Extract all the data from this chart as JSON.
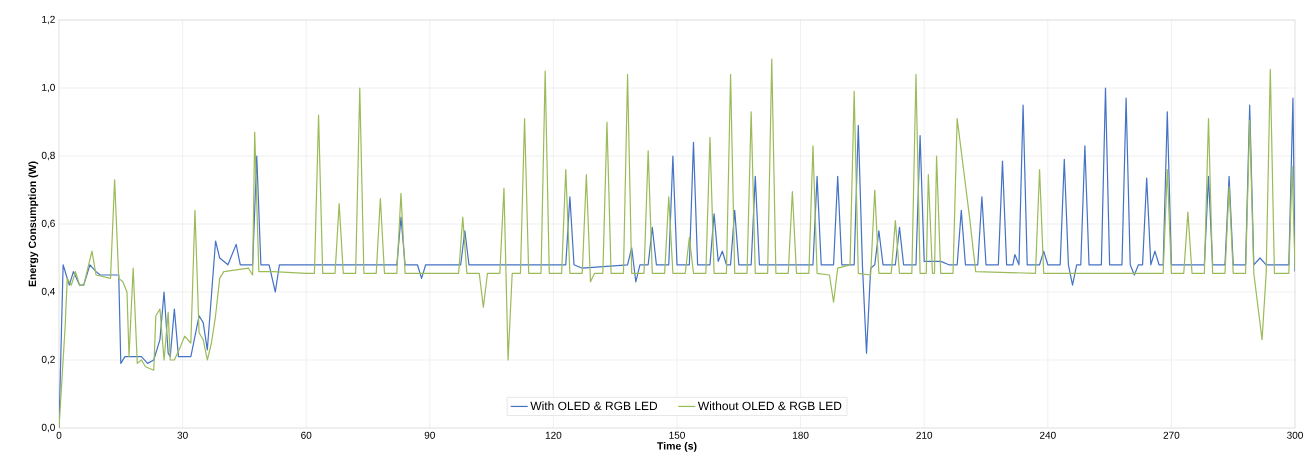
{
  "chart_data": {
    "type": "line",
    "xlabel": "Time (s)",
    "ylabel": "Energy Consumption (W)",
    "xlim": [
      0,
      300
    ],
    "xticks": [
      0,
      30,
      60,
      90,
      120,
      150,
      180,
      210,
      240,
      270,
      300
    ],
    "ylim": [
      0,
      1.2
    ],
    "yticks": [
      {
        "value": 0,
        "label": "0,0"
      },
      {
        "value": 0.2,
        "label": "0,2"
      },
      {
        "value": 0.4,
        "label": "0,4"
      },
      {
        "value": 0.6,
        "label": "0,6"
      },
      {
        "value": 0.8,
        "label": "0,8"
      },
      {
        "value": 1.0,
        "label": "1,0"
      },
      {
        "value": 1.2,
        "label": "1,2"
      }
    ],
    "grid": true,
    "legend": "bottom",
    "marker": "none",
    "line_style": "solid",
    "series": [
      {
        "name": "With OLED & RGB LED",
        "color": "#4472c4",
        "x": [
          0,
          1,
          2.5,
          3.5,
          5,
          6,
          7.5,
          9,
          10,
          14.5,
          15,
          16,
          20,
          21.5,
          23,
          24.5,
          25.5,
          26.5,
          27,
          28,
          29,
          30,
          32,
          34,
          35,
          36,
          38,
          39,
          41,
          43,
          44,
          47,
          48,
          49,
          51,
          52.5,
          53.5,
          82,
          83,
          84,
          87,
          88,
          89,
          97.5,
          98.5,
          99.5,
          123,
          124,
          125,
          127,
          138,
          139,
          140,
          141,
          143,
          144,
          145,
          148,
          149,
          150,
          153,
          154,
          155,
          158,
          159,
          160,
          161,
          162,
          163,
          164,
          165,
          168,
          169,
          170,
          183,
          184,
          185,
          188,
          189,
          190,
          193,
          194,
          195,
          196,
          197,
          198,
          199,
          200,
          203,
          204,
          205,
          208,
          209,
          210,
          214,
          216,
          218,
          219,
          220,
          223,
          224,
          225,
          228,
          229,
          230,
          231.5,
          232,
          233,
          234,
          235,
          238,
          239,
          240,
          243,
          244,
          245,
          246,
          247,
          248,
          249,
          250,
          253,
          254,
          255,
          258,
          259,
          260,
          261,
          262,
          263,
          264,
          265,
          266,
          267,
          268,
          269,
          270,
          278,
          279,
          280,
          283,
          284,
          285,
          288,
          289,
          290,
          291.5,
          293,
          294,
          295,
          298.5,
          299.5,
          300
        ],
        "values": [
          0,
          0.48,
          0.42,
          0.46,
          0.42,
          0.42,
          0.48,
          0.46,
          0.45,
          0.45,
          0.19,
          0.21,
          0.21,
          0.19,
          0.2,
          0.26,
          0.4,
          0.22,
          0.21,
          0.35,
          0.21,
          0.21,
          0.21,
          0.33,
          0.31,
          0.23,
          0.55,
          0.5,
          0.48,
          0.54,
          0.48,
          0.48,
          0.8,
          0.48,
          0.48,
          0.4,
          0.48,
          0.48,
          0.62,
          0.48,
          0.48,
          0.44,
          0.48,
          0.48,
          0.58,
          0.48,
          0.48,
          0.68,
          0.48,
          0.47,
          0.48,
          0.53,
          0.43,
          0.48,
          0.48,
          0.59,
          0.48,
          0.48,
          0.8,
          0.48,
          0.48,
          0.84,
          0.48,
          0.48,
          0.63,
          0.49,
          0.52,
          0.48,
          0.48,
          0.64,
          0.48,
          0.48,
          0.74,
          0.48,
          0.48,
          0.74,
          0.48,
          0.48,
          0.74,
          0.48,
          0.48,
          0.89,
          0.48,
          0.22,
          0.47,
          0.48,
          0.58,
          0.48,
          0.48,
          0.59,
          0.48,
          0.48,
          0.86,
          0.49,
          0.49,
          0.48,
          0.48,
          0.64,
          0.48,
          0.48,
          0.68,
          0.48,
          0.48,
          0.785,
          0.48,
          0.48,
          0.51,
          0.48,
          0.95,
          0.48,
          0.48,
          0.52,
          0.48,
          0.48,
          0.79,
          0.48,
          0.42,
          0.48,
          0.48,
          0.83,
          0.48,
          0.48,
          1.0,
          0.48,
          0.48,
          0.97,
          0.48,
          0.45,
          0.48,
          0.48,
          0.735,
          0.48,
          0.52,
          0.48,
          0.48,
          0.93,
          0.48,
          0.48,
          0.74,
          0.48,
          0.48,
          0.74,
          0.48,
          0.48,
          0.95,
          0.48,
          0.5,
          0.48,
          null,
          0.48,
          0.48,
          0.97,
          0.46
        ]
      },
      {
        "name": "Without OLED & RGB LED",
        "color": "#9bbb59",
        "x": [
          0,
          1.5,
          2,
          3,
          4,
          5,
          6,
          7,
          8,
          9,
          12.5,
          13.5,
          14.5,
          15.5,
          16.5,
          17,
          18,
          19,
          20,
          21,
          23,
          23.5,
          24.5,
          25.5,
          26.5,
          27,
          28,
          29.5,
          30.5,
          32,
          33,
          34,
          35,
          36,
          37,
          38,
          39,
          40,
          46,
          47,
          47.5,
          48.5,
          52,
          60,
          62,
          63,
          64,
          67,
          68,
          69,
          72,
          73,
          74,
          77,
          78,
          79,
          82,
          83,
          84,
          97,
          98,
          99,
          102,
          103,
          104,
          107,
          108,
          108.5,
          109,
          110,
          112,
          113,
          114,
          117,
          118,
          119,
          122,
          123,
          124,
          127,
          128,
          129,
          130,
          132,
          133,
          134,
          137,
          138,
          139,
          142,
          143,
          144,
          147,
          148,
          149,
          152,
          153,
          154,
          157,
          158,
          159,
          162,
          163,
          164,
          167,
          168,
          169,
          172,
          173,
          174,
          177,
          178,
          179,
          182,
          183,
          184,
          187,
          188,
          189,
          192,
          193,
          194,
          197,
          198,
          199,
          202,
          203,
          204,
          207,
          208,
          209,
          210.5,
          211,
          212,
          212.5,
          213,
          214,
          217,
          218,
          221,
          222.5,
          237,
          238,
          239,
          268,
          269,
          270,
          273,
          274,
          275,
          278,
          279,
          280,
          283,
          284,
          285,
          288,
          289,
          290,
          292,
          293,
          294,
          295,
          298.5,
          299.3,
          300
        ],
        "values": [
          0,
          0.3,
          0.44,
          0.42,
          0.46,
          0.42,
          0.42,
          0.47,
          0.52,
          0.45,
          0.44,
          0.73,
          0.44,
          0.43,
          0.4,
          0.21,
          0.47,
          0.19,
          0.2,
          0.18,
          0.17,
          0.33,
          0.35,
          0.2,
          0.34,
          0.2,
          0.2,
          0.24,
          0.27,
          0.25,
          0.64,
          0.28,
          0.26,
          0.2,
          0.25,
          0.33,
          0.44,
          0.46,
          0.47,
          0.45,
          0.87,
          0.46,
          0.46,
          0.455,
          0.455,
          0.92,
          0.455,
          0.455,
          0.66,
          0.455,
          0.455,
          1.0,
          0.455,
          0.455,
          0.675,
          0.455,
          0.455,
          0.69,
          0.455,
          0.455,
          0.62,
          0.455,
          0.455,
          0.355,
          0.455,
          0.455,
          0.705,
          0.45,
          0.2,
          0.455,
          0.455,
          0.91,
          0.455,
          0.455,
          1.05,
          0.455,
          0.455,
          0.76,
          0.455,
          0.455,
          0.745,
          0.43,
          0.455,
          0.455,
          0.9,
          0.455,
          0.455,
          1.04,
          0.455,
          0.455,
          0.815,
          0.455,
          0.455,
          0.68,
          0.455,
          0.455,
          0.56,
          0.455,
          0.455,
          0.855,
          0.455,
          0.455,
          1.04,
          0.455,
          0.455,
          0.93,
          0.455,
          0.455,
          1.085,
          0.455,
          0.455,
          0.695,
          0.455,
          0.455,
          0.83,
          0.455,
          0.45,
          0.37,
          0.47,
          0.48,
          0.99,
          0.455,
          0.45,
          0.7,
          0.455,
          0.455,
          0.61,
          0.455,
          0.455,
          1.04,
          0.455,
          0.455,
          0.745,
          0.455,
          0.455,
          0.8,
          0.455,
          0.455,
          0.91,
          0.62,
          0.46,
          0.455,
          0.76,
          0.455,
          0.455,
          0.76,
          0.455,
          0.455,
          0.635,
          0.455,
          0.455,
          0.91,
          0.455,
          0.455,
          0.71,
          0.455,
          0.455,
          0.905,
          0.455,
          0.26,
          0.455,
          1.055,
          0.455,
          0.455,
          0.77,
          0.47
        ]
      }
    ]
  }
}
